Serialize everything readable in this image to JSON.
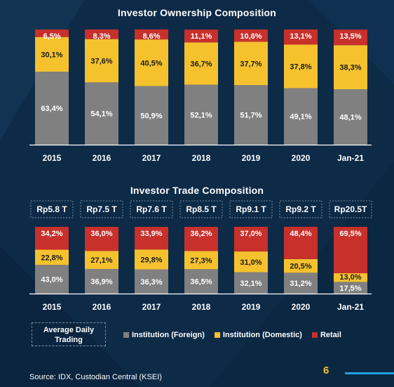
{
  "colors": {
    "institution_foreign": "#808080",
    "institution_domestic": "#f5c22e",
    "retail": "#c8302b",
    "background": "#0d2a47",
    "page_number": "#f5c22e"
  },
  "chart_data": [
    {
      "type": "bar",
      "stacked": true,
      "title": "Investor Ownership Composition",
      "categories": [
        "2015",
        "2016",
        "2017",
        "2018",
        "2019",
        "2020",
        "Jan-21"
      ],
      "series": [
        {
          "name": "Institution (Foreign)",
          "values": [
            63.4,
            54.1,
            50.9,
            52.1,
            51.7,
            49.1,
            48.1
          ],
          "labels": [
            "63,4%",
            "54,1%",
            "50,9%",
            "52,1%",
            "51,7%",
            "49,1%",
            "48,1%"
          ]
        },
        {
          "name": "Institution (Domestic)",
          "values": [
            30.1,
            37.6,
            40.5,
            36.7,
            37.7,
            37.8,
            38.3
          ],
          "labels": [
            "30,1%",
            "37,6%",
            "40,5%",
            "36,7%",
            "37,7%",
            "37,8%",
            "38,3%"
          ]
        },
        {
          "name": "Retail",
          "values": [
            6.5,
            8.3,
            8.6,
            11.1,
            10.6,
            13.1,
            13.5
          ],
          "labels": [
            "6,5%",
            "8,3%",
            "8,6%",
            "11,1%",
            "10,6%",
            "13,1%",
            "13,5%"
          ]
        }
      ]
    },
    {
      "type": "bar",
      "stacked": true,
      "title": "Investor Trade Composition",
      "categories": [
        "2015",
        "2016",
        "2017",
        "2018",
        "2019",
        "2020",
        "Jan-21"
      ],
      "average_daily_trading": [
        "Rp5.8 T",
        "Rp7.5 T",
        "Rp7.6 T",
        "Rp8.5 T",
        "Rp9.1 T",
        "Rp9.2 T",
        "Rp20.5T"
      ],
      "series": [
        {
          "name": "Institution (Foreign)",
          "values": [
            43.0,
            36.9,
            36.3,
            36.5,
            32.1,
            31.2,
            17.5
          ],
          "labels": [
            "43,0%",
            "36,9%",
            "36,3%",
            "36,5%",
            "32,1%",
            "31,2%",
            "17,5%"
          ]
        },
        {
          "name": "Institution (Domestic)",
          "values": [
            22.8,
            27.1,
            29.8,
            27.3,
            31.0,
            20.5,
            13.0
          ],
          "labels": [
            "22,8%",
            "27,1%",
            "29,8%",
            "27,3%",
            "31,0%",
            "20,5%",
            "13,0%"
          ]
        },
        {
          "name": "Retail",
          "values": [
            34.2,
            36.0,
            33.9,
            36.2,
            37.0,
            48.4,
            69.5
          ],
          "labels": [
            "34,2%",
            "36,0%",
            "33,9%",
            "36,2%",
            "37,0%",
            "48,4%",
            "69,5%"
          ]
        }
      ]
    }
  ],
  "adt_label": "Average Daily Trading",
  "legend": [
    "Institution (Foreign)",
    "Institution (Domestic)",
    "Retail"
  ],
  "source": "Source: IDX, Custodian Central (KSEI)",
  "page_number": "6"
}
